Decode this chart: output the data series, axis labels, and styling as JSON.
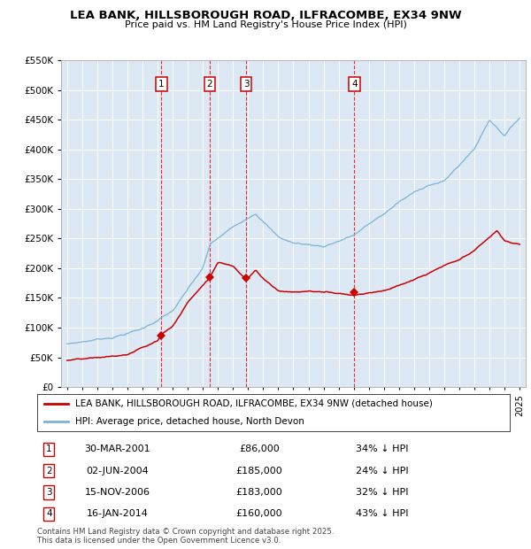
{
  "title_line1": "LEA BANK, HILLSBOROUGH ROAD, ILFRACOMBE, EX34 9NW",
  "title_line2": "Price paid vs. HM Land Registry's House Price Index (HPI)",
  "plot_bg": "#dce9f5",
  "hpi_color": "#7ab3d8",
  "price_color": "#cc0000",
  "sales": [
    {
      "num": 1,
      "date_str": "30-MAR-2001",
      "date_x": 2001.25,
      "price": 86000,
      "pct": "34%",
      "dir": "↓"
    },
    {
      "num": 2,
      "date_str": "02-JUN-2004",
      "date_x": 2004.45,
      "price": 185000,
      "pct": "24%",
      "dir": "↓"
    },
    {
      "num": 3,
      "date_str": "15-NOV-2006",
      "date_x": 2006.87,
      "price": 183000,
      "pct": "32%",
      "dir": "↓"
    },
    {
      "num": 4,
      "date_str": "16-JAN-2014",
      "date_x": 2014.04,
      "price": 160000,
      "pct": "43%",
      "dir": "↓"
    }
  ],
  "legend_line1": "LEA BANK, HILLSBOROUGH ROAD, ILFRACOMBE, EX34 9NW (detached house)",
  "legend_line2": "HPI: Average price, detached house, North Devon",
  "footer": "Contains HM Land Registry data © Crown copyright and database right 2025.\nThis data is licensed under the Open Government Licence v3.0.",
  "ylim": [
    0,
    550000
  ],
  "xlim": [
    1994.6,
    2025.4
  ],
  "yticks": [
    0,
    50000,
    100000,
    150000,
    200000,
    250000,
    300000,
    350000,
    400000,
    450000,
    500000,
    550000
  ]
}
